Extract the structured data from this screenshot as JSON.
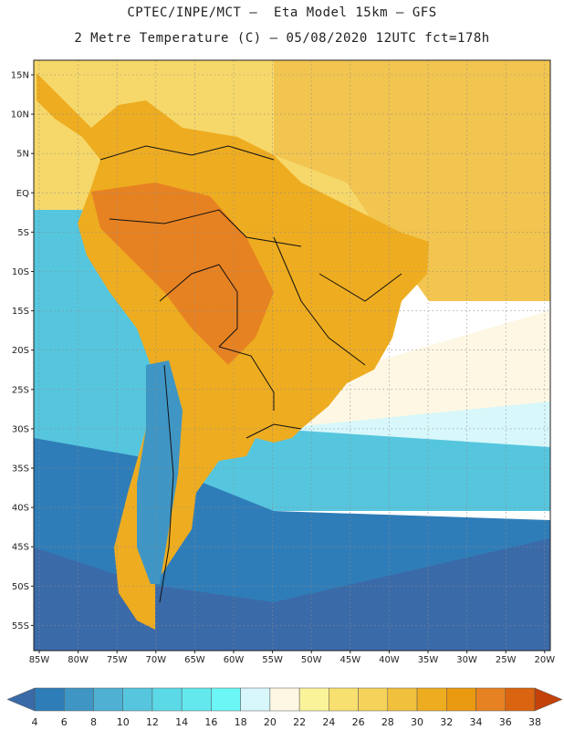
{
  "title_line1": "CPTEC/INPE/MCT –  Eta Model 15km – GFS",
  "title_line2": "2 Metre Temperature (C) – 05/08/2020 12UTC fct=178h",
  "lat_labels": [
    "15N",
    "10N",
    "5N",
    "EQ",
    "5S",
    "10S",
    "15S",
    "20S",
    "25S",
    "30S",
    "35S",
    "40S",
    "45S",
    "50S",
    "55S"
  ],
  "lon_labels": [
    "85W",
    "80W",
    "75W",
    "70W",
    "65W",
    "60W",
    "55W",
    "50W",
    "45W",
    "40W",
    "35W",
    "30W",
    "25W",
    "20W"
  ],
  "colorbar": {
    "levels": [
      "4",
      "6",
      "8",
      "10",
      "12",
      "14",
      "16",
      "18",
      "20",
      "22",
      "24",
      "26",
      "28",
      "30",
      "32",
      "34",
      "36",
      "38"
    ],
    "colors": [
      "#3b6aa8",
      "#2f7db8",
      "#3f96c4",
      "#4fb0d4",
      "#56c6de",
      "#5cd9e6",
      "#63e8ee",
      "#6cf6f6",
      "#d7f7fb",
      "#fdf7e4",
      "#fbf39a",
      "#f8e070",
      "#f5d25a",
      "#f1c13e",
      "#eeac20",
      "#ea9a10",
      "#e78222",
      "#da6410",
      "#c2420a"
    ]
  },
  "colors": {
    "ocean_warm": "#f6d86a",
    "ocean_warm_north": "#f2c450",
    "ocean_pale": "#fdf7e4",
    "ocean_light_cyan": "#d7f7fb",
    "ocean_cyan": "#56c6de",
    "ocean_mid": "#2f7db8",
    "ocean_deep": "#3b6aa8",
    "land_hot": "#eeac20",
    "land_hotter": "#e78222",
    "land_cold": "#3f96c4",
    "border": "#111111"
  }
}
